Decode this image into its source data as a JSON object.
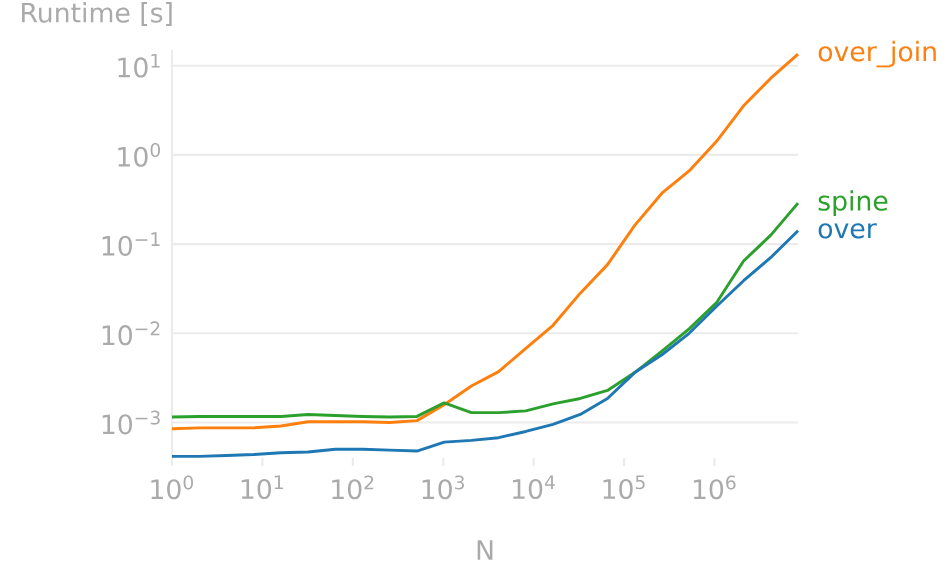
{
  "chart_data": {
    "type": "line",
    "xlabel": "N",
    "ylabel": "Runtime [s]",
    "log": "xy",
    "grid": "y",
    "marker": "none",
    "x": [
      1,
      2,
      4,
      8,
      16,
      32,
      64,
      128,
      256,
      512,
      1024,
      2048,
      4096,
      8192,
      16384,
      32768,
      65536,
      131072,
      262144,
      524288,
      1048576,
      2097152,
      4194304,
      8388608
    ],
    "series": [
      {
        "name": "over_join",
        "color": "#ff7f0e",
        "values": [
          0.000851,
          0.000871,
          0.000871,
          0.000871,
          0.000912,
          0.00102,
          0.00102,
          0.00102,
          0.001,
          0.00105,
          0.00158,
          0.00257,
          0.00372,
          0.00676,
          0.0123,
          0.0282,
          0.0589,
          0.162,
          0.372,
          0.661,
          1.41,
          3.55,
          7.24,
          13.5
        ]
      },
      {
        "name": "spine",
        "color": "#2ca02c",
        "values": [
          0.00115,
          0.00117,
          0.00117,
          0.00117,
          0.00117,
          0.00123,
          0.0012,
          0.00117,
          0.00115,
          0.00117,
          0.00166,
          0.00129,
          0.00129,
          0.00135,
          0.00162,
          0.00186,
          0.00229,
          0.00363,
          0.00631,
          0.0112,
          0.0219,
          0.0646,
          0.126,
          0.288
        ]
      },
      {
        "name": "over",
        "color": "#1f77b4",
        "values": [
          0.000417,
          0.000417,
          0.000427,
          0.000437,
          0.000457,
          0.000468,
          0.000501,
          0.000501,
          0.00049,
          0.000479,
          0.000603,
          0.000631,
          0.000676,
          0.000794,
          0.000955,
          0.00123,
          0.00186,
          0.00363,
          0.00575,
          0.01,
          0.02,
          0.0389,
          0.0708,
          0.141
        ]
      }
    ],
    "xlim": [
      1,
      8388608
    ],
    "ylim": [
      0.0004,
      15
    ],
    "xticks": [
      {
        "value": 1,
        "label": "10$^{0}$"
      },
      {
        "value": 10,
        "label": "10$^{1}$"
      },
      {
        "value": 100,
        "label": "10$^{2}$"
      },
      {
        "value": 1000,
        "label": "10$^{3}$"
      },
      {
        "value": 10000,
        "label": "10$^{4}$"
      },
      {
        "value": 100000,
        "label": "10$^{5}$"
      },
      {
        "value": 1000000,
        "label": "10$^{6}$"
      }
    ],
    "yticks": [
      {
        "value": 0.001,
        "label": "10$^{−3}$"
      },
      {
        "value": 0.01,
        "label": "10$^{−2}$"
      },
      {
        "value": 0.1,
        "label": "10$^{−1}$"
      },
      {
        "value": 1,
        "label": "10$^{0}$"
      },
      {
        "value": 10,
        "label": "10$^{1}$"
      }
    ]
  }
}
